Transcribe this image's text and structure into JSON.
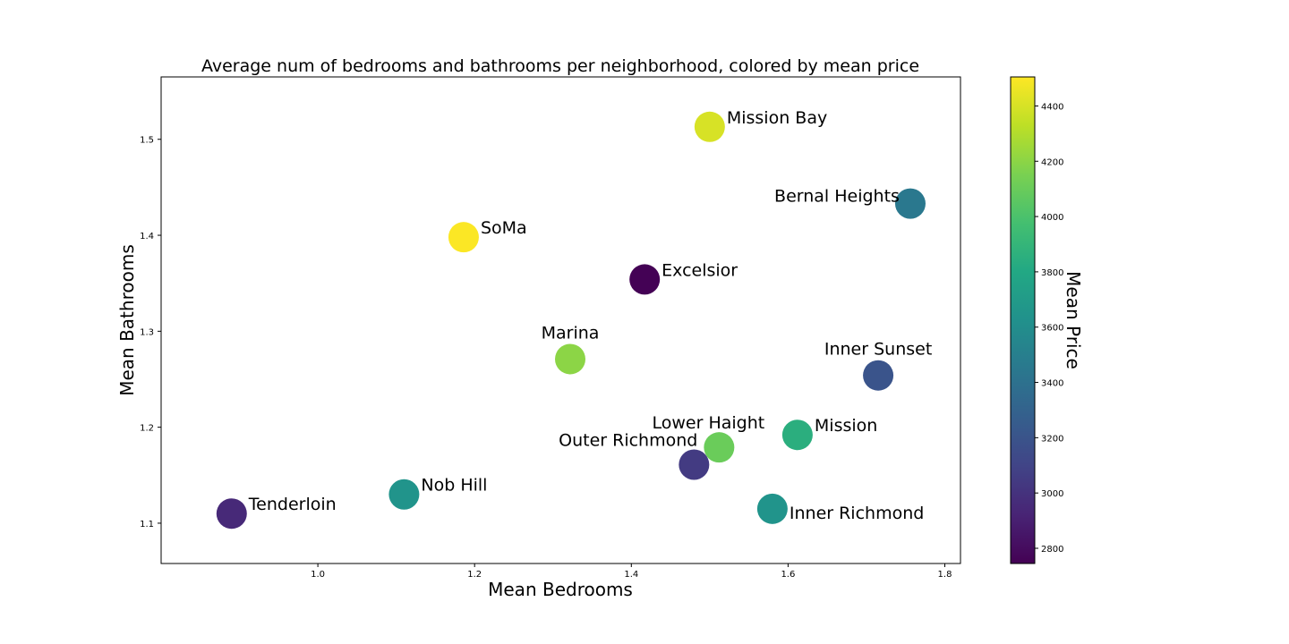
{
  "chart_data": {
    "type": "scatter",
    "title": "Average num of bedrooms and bathrooms per neighborhood, colored by mean price",
    "xlabel": "Mean Bedrooms",
    "ylabel": "Mean Bathrooms",
    "xlim": [
      0.8,
      1.82
    ],
    "ylim": [
      1.058,
      1.565
    ],
    "xticks": [
      1.0,
      1.2,
      1.4,
      1.6,
      1.8
    ],
    "xtick_labels": [
      "1.0",
      "1.2",
      "1.4",
      "1.6",
      "1.8"
    ],
    "yticks": [
      1.1,
      1.2,
      1.3,
      1.4,
      1.5
    ],
    "ytick_labels": [
      "1.1",
      "1.2",
      "1.3",
      "1.4",
      "1.5"
    ],
    "grid": false,
    "colormap": "viridis",
    "colorbar": {
      "label": "Mean Price",
      "range": [
        2745,
        4505
      ],
      "ticks": [
        2800,
        3000,
        3200,
        3400,
        3600,
        3800,
        4000,
        4200,
        4400
      ],
      "tick_labels": [
        "2800",
        "3000",
        "3200",
        "3400",
        "3600",
        "3800",
        "4000",
        "4200",
        "4400"
      ]
    },
    "points": [
      {
        "name": "Tenderloin",
        "x": 0.89,
        "y": 1.11,
        "price": 2950,
        "label_side": "right"
      },
      {
        "name": "Nob Hill",
        "x": 1.11,
        "y": 1.13,
        "price": 3650,
        "label_side": "right"
      },
      {
        "name": "SoMa",
        "x": 1.186,
        "y": 1.398,
        "price": 4500,
        "label_side": "right"
      },
      {
        "name": "Marina",
        "x": 1.322,
        "y": 1.271,
        "price": 4200,
        "label_side": "above"
      },
      {
        "name": "Excelsior",
        "x": 1.417,
        "y": 1.354,
        "price": 2750,
        "label_side": "right"
      },
      {
        "name": "Outer Richmond",
        "x": 1.48,
        "y": 1.161,
        "price": 3050,
        "label_side": "left-below"
      },
      {
        "name": "Mission Bay",
        "x": 1.5,
        "y": 1.513,
        "price": 4400,
        "label_side": "right"
      },
      {
        "name": "Lower Haight",
        "x": 1.512,
        "y": 1.179,
        "price": 4100,
        "label_side": "above-left"
      },
      {
        "name": "Inner Richmond",
        "x": 1.58,
        "y": 1.115,
        "price": 3650,
        "label_side": "right-below"
      },
      {
        "name": "Mission",
        "x": 1.612,
        "y": 1.192,
        "price": 3850,
        "label_side": "right"
      },
      {
        "name": "Inner Sunset",
        "x": 1.715,
        "y": 1.254,
        "price": 3200,
        "label_side": "above"
      },
      {
        "name": "Bernal Heights",
        "x": 1.756,
        "y": 1.433,
        "price": 3450,
        "label_side": "left"
      }
    ]
  }
}
